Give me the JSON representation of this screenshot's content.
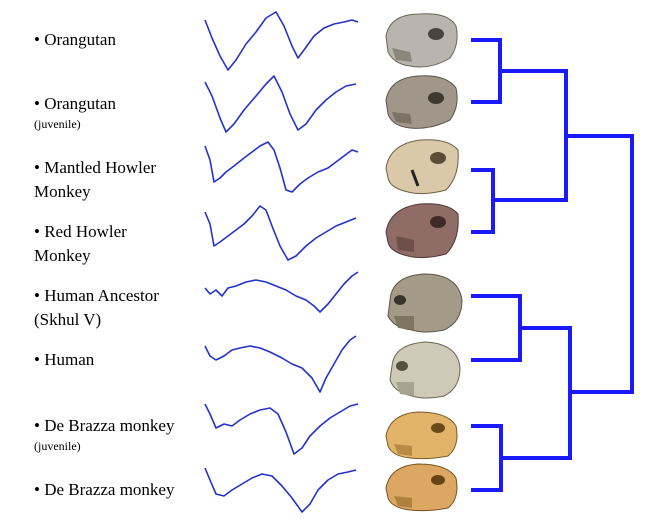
{
  "colors": {
    "waveform": "#2233cc",
    "dendrogram": "#1a1aff",
    "text": "#000000"
  },
  "specimens": [
    {
      "name": "• Orangutan",
      "sub": "",
      "skull_icon": "orangutan-skull"
    },
    {
      "name": "• Orangutan",
      "sub": "(juvenile)",
      "skull_icon": "juvenile-orangutan-skull"
    },
    {
      "name": "• Mantled Howler",
      "name2": "Monkey",
      "sub": "",
      "skull_icon": "mantled-howler-monkey-skull"
    },
    {
      "name": "• Red Howler",
      "name2": "Monkey",
      "sub": "",
      "skull_icon": "red-howler-monkey-skull"
    },
    {
      "name": "• Human Ancestor",
      "name2": "(Skhul V)",
      "sub": "",
      "skull_icon": "skhul-v-skull"
    },
    {
      "name": "• Human",
      "sub": "",
      "skull_icon": "human-skull"
    },
    {
      "name": "• De Brazza monkey",
      "sub": "(juvenile)",
      "skull_icon": "juvenile-de-brazza-skull"
    },
    {
      "name": "• De Brazza monkey",
      "sub": "",
      "skull_icon": "de-brazza-skull"
    }
  ],
  "dendrogram": {
    "merges": [
      [
        0,
        1
      ],
      [
        2,
        3
      ],
      [
        4,
        5
      ],
      [
        6,
        7
      ],
      [
        8,
        9
      ],
      [
        10,
        11
      ],
      [
        12,
        13
      ]
    ]
  }
}
